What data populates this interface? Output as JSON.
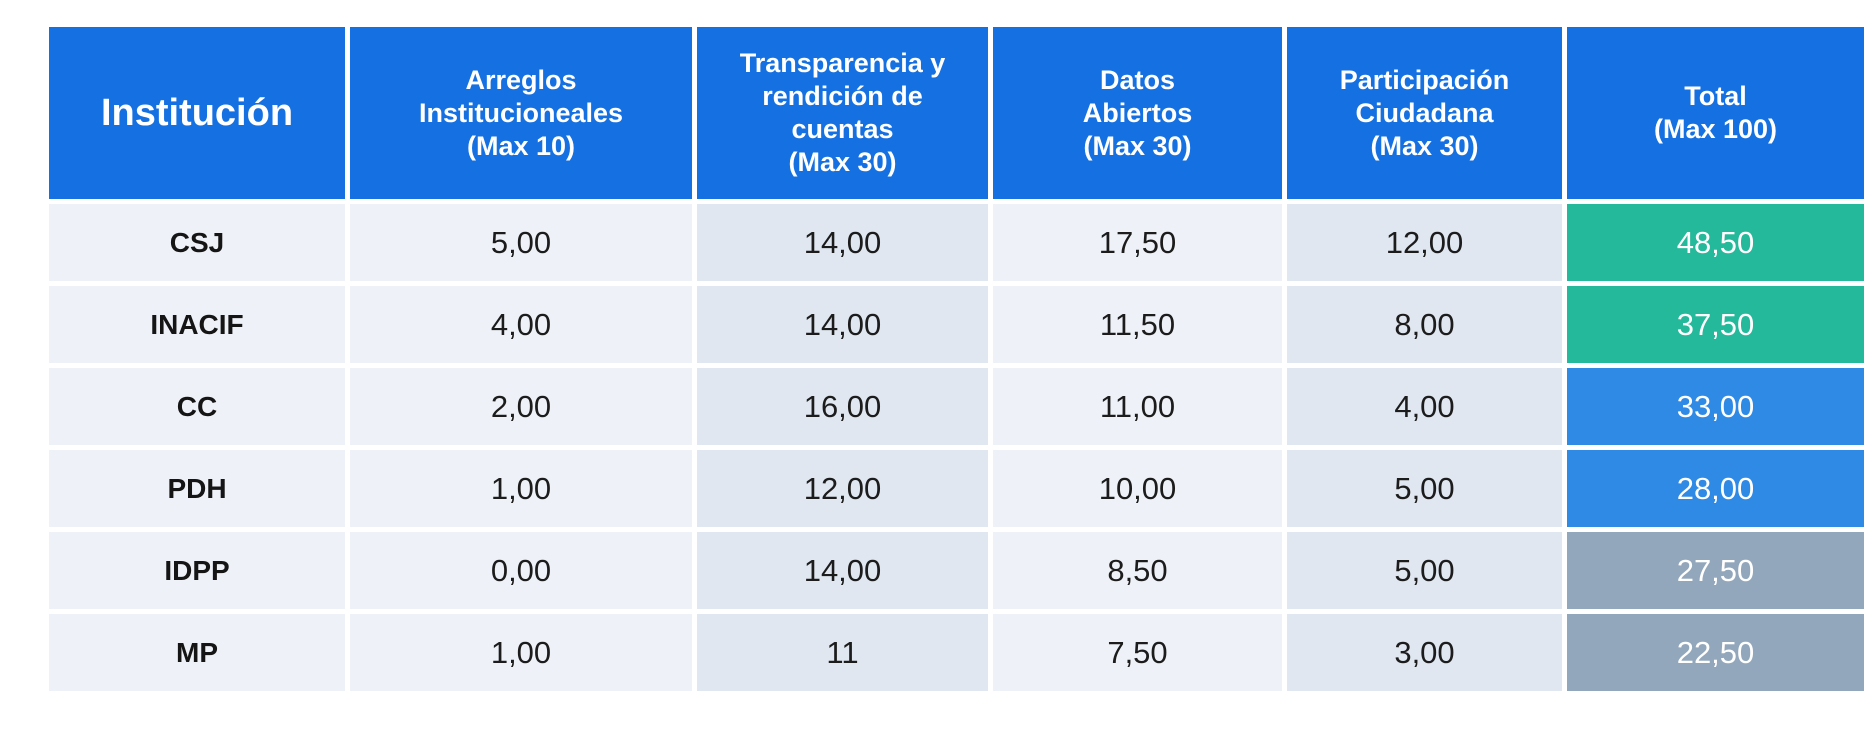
{
  "chart_data": {
    "type": "table",
    "columns": [
      "Institución",
      "Arreglos\nInstitucioneales\n(Max 10)",
      "Transparencia y\nrendición de\ncuentas\n(Max 30)",
      "Datos\nAbiertos\n(Max 30)",
      "Participación\nCiudadana\n(Max 30)",
      "Total\n(Max 100)"
    ],
    "rows": [
      {
        "institucion": "CSJ",
        "arreglos": "5,00",
        "transparencia": "14,00",
        "datos": "17,50",
        "participacion": "12,00",
        "total": "48,50",
        "total_color": "#24b99a"
      },
      {
        "institucion": "INACIF",
        "arreglos": "4,00",
        "transparencia": "14,00",
        "datos": "11,50",
        "participacion": "8,00",
        "total": "37,50",
        "total_color": "#24b99a"
      },
      {
        "institucion": "CC",
        "arreglos": "2,00",
        "transparencia": "16,00",
        "datos": "11,00",
        "participacion": "4,00",
        "total": "33,00",
        "total_color": "#2f8ae6"
      },
      {
        "institucion": "PDH",
        "arreglos": "1,00",
        "transparencia": "12,00",
        "datos": "10,00",
        "participacion": "5,00",
        "total": "28,00",
        "total_color": "#2f8ae6"
      },
      {
        "institucion": "IDPP",
        "arreglos": "0,00",
        "transparencia": "14,00",
        "datos": "8,50",
        "participacion": "5,00",
        "total": "27,50",
        "total_color": "#93a7bc"
      },
      {
        "institucion": "MP",
        "arreglos": "1,00",
        "transparencia": "11",
        "datos": "7,50",
        "participacion": "3,00",
        "total": "22,50",
        "total_color": "#93a7bc"
      }
    ],
    "colors": {
      "header": "#1570e1",
      "row_light": "#eef2f8",
      "row_dark": "#e0e7f1"
    }
  }
}
